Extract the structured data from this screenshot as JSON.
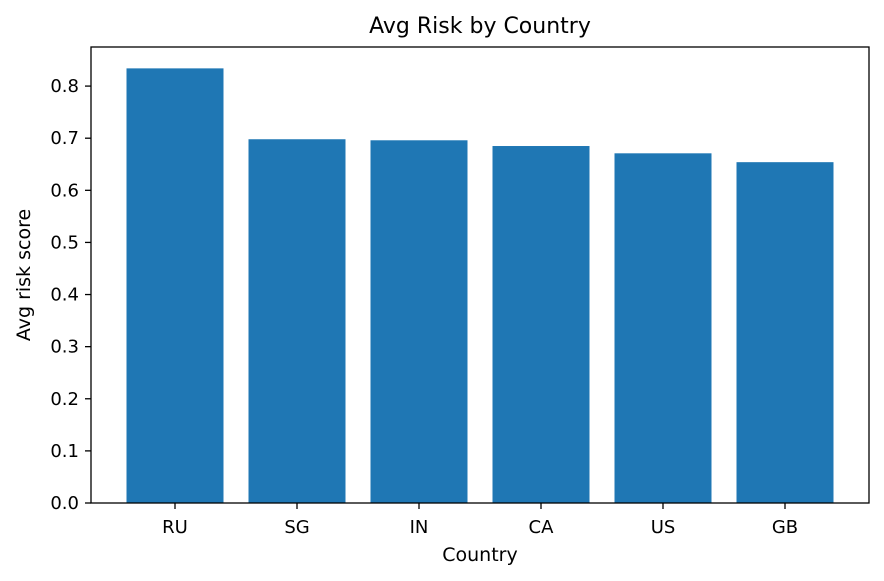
{
  "chart_data": {
    "type": "bar",
    "title": "Avg Risk by Country",
    "xlabel": "Country",
    "ylabel": "Avg risk score",
    "categories": [
      "RU",
      "SG",
      "IN",
      "CA",
      "US",
      "GB"
    ],
    "values": [
      0.834,
      0.698,
      0.696,
      0.685,
      0.671,
      0.654
    ],
    "ylim": [
      0,
      0.875
    ],
    "yticks": [
      0.0,
      0.1,
      0.2,
      0.3,
      0.4,
      0.5,
      0.6,
      0.7,
      0.8
    ],
    "ytick_labels": [
      "0.0",
      "0.1",
      "0.2",
      "0.3",
      "0.4",
      "0.5",
      "0.6",
      "0.7",
      "0.8"
    ],
    "grid": false,
    "bar_color": "#1f77b4"
  }
}
